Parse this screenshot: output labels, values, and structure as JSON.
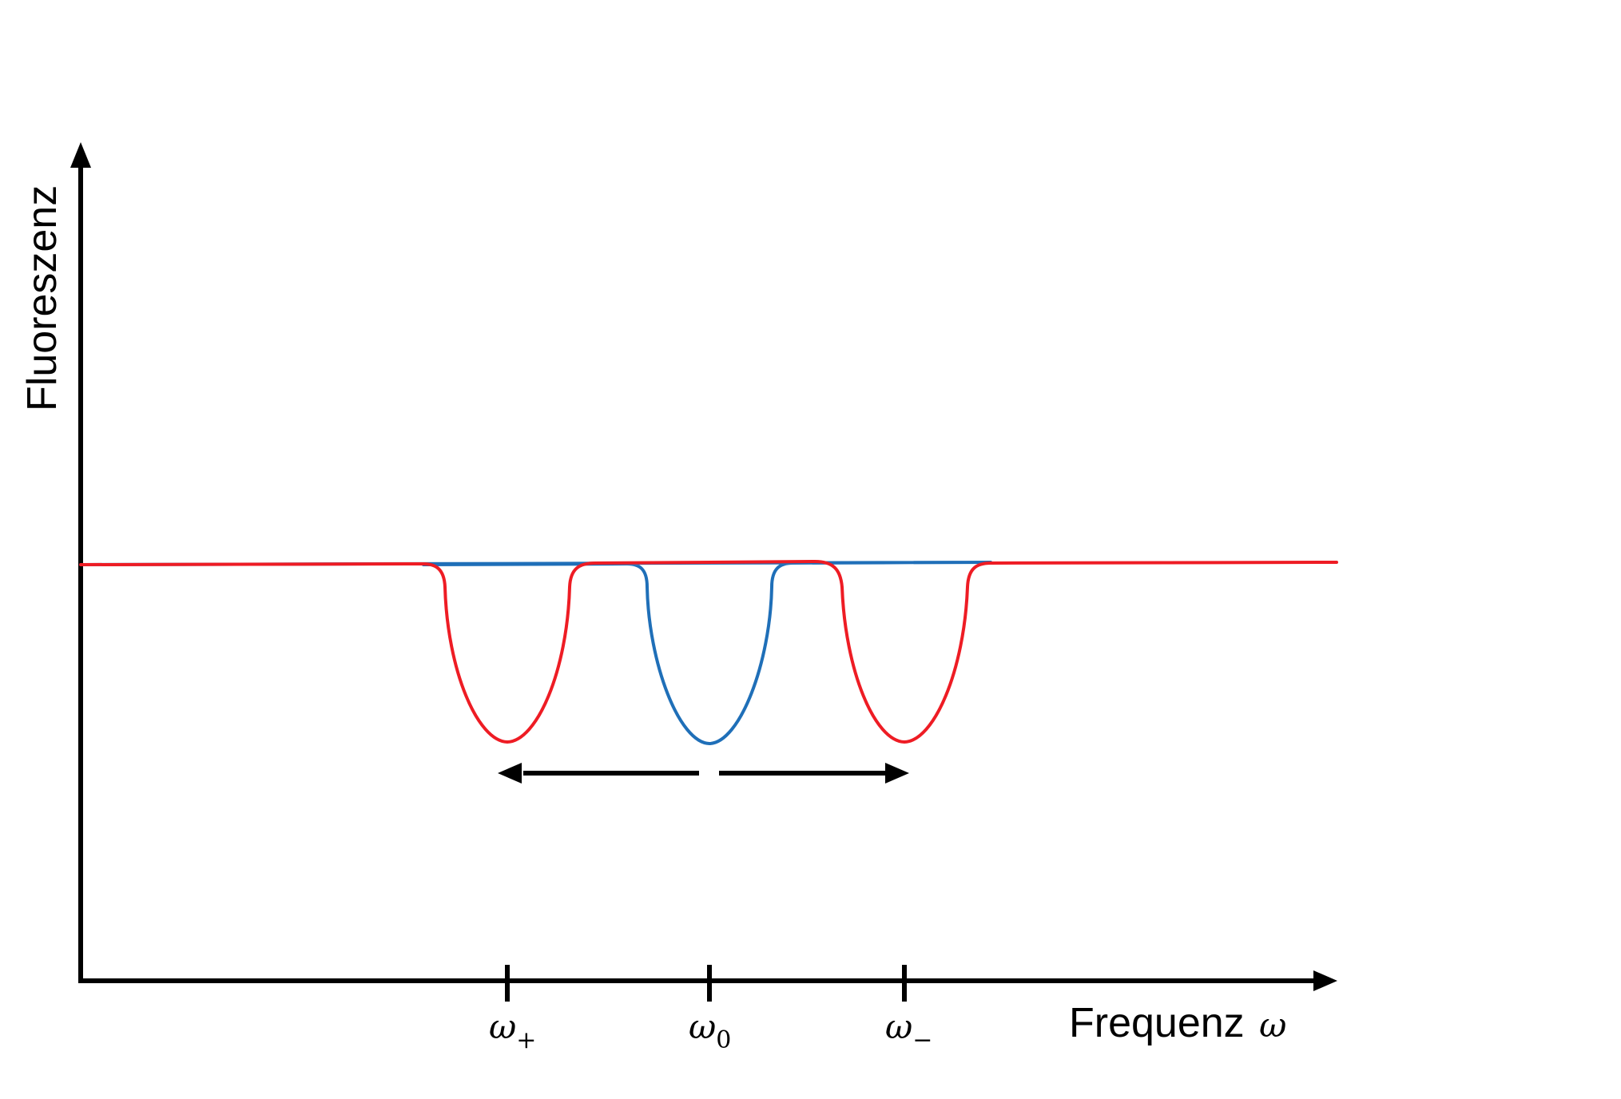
{
  "axes": {
    "y_label": "Fluoreszenz",
    "x_label": "Frequenz",
    "x_symbol": "ω"
  },
  "ticks": [
    {
      "symbol": "ω",
      "subscript": "+"
    },
    {
      "symbol": "ω",
      "subscript": "0"
    },
    {
      "symbol": "ω",
      "subscript": "−"
    }
  ],
  "colors": {
    "axis": "#000000",
    "curve_unsplit": "#1f6fb8",
    "curve_split": "#ee1c24"
  },
  "curves": {
    "unsplit": "single dip centered at ω0",
    "split": "two dips at ω+ and ω−"
  }
}
